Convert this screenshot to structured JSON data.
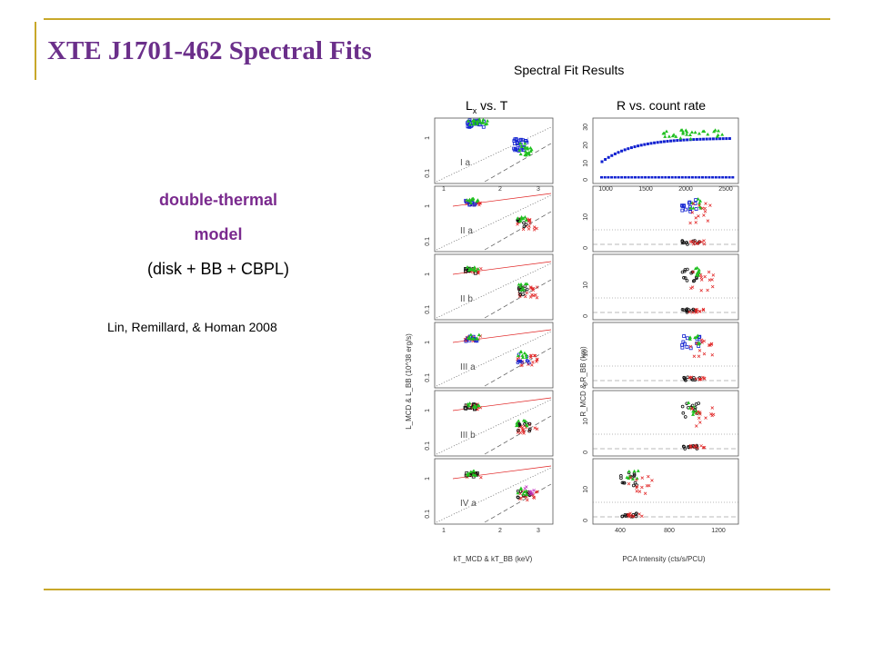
{
  "slide": {
    "title": "XTE J1701-462 Spectral Fits",
    "model_line1": "double-thermal",
    "model_line2": "model",
    "model_line3": "(disk + BB + CBPL)",
    "citation": "Lin, Remillard, & Homan 2008",
    "accent_color": "#c8a82a",
    "title_color": "#6b2f8a"
  },
  "figure": {
    "caption_title": "Spectral Fit Results",
    "left_caption_main": "L",
    "left_caption_sub": "x",
    "left_caption_rest": " vs. T",
    "right_caption": "R vs. count rate",
    "left_ylabel": "L_MCD & L_BB (10^38 erg/s)",
    "left_xlabel": "kT_MCD & kT_BB (keV)",
    "right_ylabel": "R_MCD & R_BB (km)",
    "right_xlabel": "PCA Intensity (cts/s/PCU)",
    "panel_labels": [
      "I a",
      "II a",
      "II b",
      "III a",
      "III b",
      "IV a"
    ],
    "left_tick_labels_x": [
      "1",
      "2",
      "3"
    ],
    "left_tick_labels_y": [
      "0.1",
      "1"
    ],
    "right_top_ticks_x": [
      "1000",
      "1500",
      "2000",
      "2500"
    ],
    "right_top_ticks_y": [
      "0",
      "10",
      "20",
      "30"
    ],
    "right_ticks_y": [
      "0",
      "10"
    ],
    "right_bottom_ticks_x": [
      "400",
      "800",
      "1200"
    ]
  }
}
